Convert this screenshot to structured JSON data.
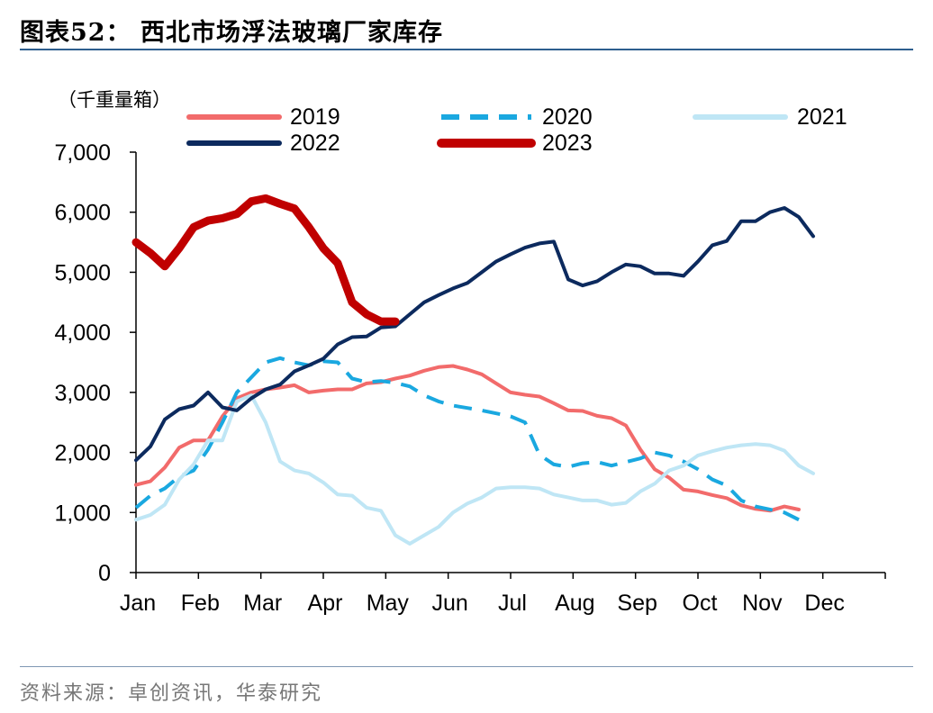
{
  "header": {
    "title": "图表52：   西北市场浮法玻璃厂家库存"
  },
  "footer": {
    "source": "资料来源：卓创资讯，华泰研究"
  },
  "chart_data": {
    "type": "line",
    "unit_label": "（千重量箱）",
    "ylim": [
      0,
      7000
    ],
    "yticks": [
      0,
      1000,
      2000,
      3000,
      4000,
      5000,
      6000,
      7000
    ],
    "ytick_labels": [
      "0",
      "1,000",
      "2,000",
      "3,000",
      "4,000",
      "5,000",
      "6,000",
      "7,000"
    ],
    "xlim": [
      0,
      52
    ],
    "xticks": [
      "Jan",
      "Feb",
      "Mar",
      "Apr",
      "May",
      "Jun",
      "Jul",
      "Aug",
      "Sep",
      "Oct",
      "Nov",
      "Dec"
    ],
    "legend_position": "top",
    "series": [
      {
        "name": "2019",
        "color": "#f26b6b",
        "dash": "",
        "width": 4,
        "points": [
          [
            0,
            1460
          ],
          [
            1,
            1520
          ],
          [
            2,
            1750
          ],
          [
            3,
            2080
          ],
          [
            4,
            2200
          ],
          [
            5,
            2200
          ],
          [
            6,
            2600
          ],
          [
            7,
            2900
          ],
          [
            8,
            3000
          ],
          [
            9,
            3050
          ],
          [
            10,
            3080
          ],
          [
            11,
            3120
          ],
          [
            12,
            3000
          ],
          [
            13,
            3030
          ],
          [
            14,
            3050
          ],
          [
            15,
            3050
          ],
          [
            16,
            3150
          ],
          [
            17,
            3170
          ],
          [
            18,
            3230
          ],
          [
            19,
            3280
          ],
          [
            20,
            3360
          ],
          [
            21,
            3420
          ],
          [
            22,
            3440
          ],
          [
            23,
            3380
          ],
          [
            24,
            3300
          ],
          [
            25,
            3150
          ],
          [
            26,
            3000
          ],
          [
            27,
            2960
          ],
          [
            28,
            2930
          ],
          [
            29,
            2820
          ],
          [
            30,
            2700
          ],
          [
            31,
            2690
          ],
          [
            32,
            2610
          ],
          [
            33,
            2570
          ],
          [
            34,
            2450
          ],
          [
            35,
            2050
          ],
          [
            36,
            1720
          ],
          [
            37,
            1580
          ],
          [
            38,
            1380
          ],
          [
            39,
            1350
          ],
          [
            40,
            1290
          ],
          [
            41,
            1240
          ],
          [
            42,
            1120
          ],
          [
            43,
            1060
          ],
          [
            44,
            1030
          ],
          [
            45,
            1100
          ],
          [
            46,
            1050
          ]
        ]
      },
      {
        "name": "2020",
        "color": "#1aa8e0",
        "dash": "20,12",
        "width": 4,
        "points": [
          [
            0,
            1080
          ],
          [
            1,
            1280
          ],
          [
            2,
            1400
          ],
          [
            3,
            1600
          ],
          [
            4,
            1700
          ],
          [
            5,
            2050
          ],
          [
            6,
            2500
          ],
          [
            7,
            3000
          ],
          [
            8,
            3250
          ],
          [
            9,
            3500
          ],
          [
            10,
            3570
          ],
          [
            11,
            3500
          ],
          [
            12,
            3450
          ],
          [
            13,
            3520
          ],
          [
            14,
            3500
          ],
          [
            15,
            3230
          ],
          [
            16,
            3170
          ],
          [
            17,
            3190
          ],
          [
            18,
            3160
          ],
          [
            19,
            3100
          ],
          [
            20,
            2950
          ],
          [
            21,
            2850
          ],
          [
            22,
            2780
          ],
          [
            23,
            2740
          ],
          [
            24,
            2700
          ],
          [
            25,
            2650
          ],
          [
            26,
            2600
          ],
          [
            27,
            2500
          ],
          [
            28,
            1960
          ],
          [
            29,
            1800
          ],
          [
            30,
            1760
          ],
          [
            31,
            1820
          ],
          [
            32,
            1840
          ],
          [
            33,
            1780
          ],
          [
            34,
            1840
          ],
          [
            35,
            1900
          ],
          [
            36,
            2000
          ],
          [
            37,
            1950
          ],
          [
            38,
            1850
          ],
          [
            39,
            1720
          ],
          [
            40,
            1550
          ],
          [
            41,
            1450
          ],
          [
            42,
            1200
          ],
          [
            43,
            1100
          ],
          [
            44,
            1050
          ],
          [
            45,
            1000
          ],
          [
            46,
            880
          ]
        ]
      },
      {
        "name": "2021",
        "color": "#bfe6f5",
        "dash": "",
        "width": 4,
        "points": [
          [
            0,
            880
          ],
          [
            1,
            960
          ],
          [
            2,
            1130
          ],
          [
            3,
            1550
          ],
          [
            4,
            1800
          ],
          [
            5,
            2200
          ],
          [
            6,
            2200
          ],
          [
            7,
            2850
          ],
          [
            8,
            2950
          ],
          [
            9,
            2500
          ],
          [
            10,
            1850
          ],
          [
            11,
            1700
          ],
          [
            12,
            1650
          ],
          [
            13,
            1500
          ],
          [
            14,
            1300
          ],
          [
            15,
            1280
          ],
          [
            16,
            1080
          ],
          [
            17,
            1030
          ],
          [
            18,
            620
          ],
          [
            19,
            480
          ],
          [
            20,
            620
          ],
          [
            21,
            760
          ],
          [
            22,
            1000
          ],
          [
            23,
            1150
          ],
          [
            24,
            1250
          ],
          [
            25,
            1400
          ],
          [
            26,
            1420
          ],
          [
            27,
            1420
          ],
          [
            28,
            1400
          ],
          [
            29,
            1300
          ],
          [
            30,
            1250
          ],
          [
            31,
            1200
          ],
          [
            32,
            1200
          ],
          [
            33,
            1130
          ],
          [
            34,
            1160
          ],
          [
            35,
            1350
          ],
          [
            36,
            1480
          ],
          [
            37,
            1700
          ],
          [
            38,
            1780
          ],
          [
            39,
            1950
          ],
          [
            40,
            2020
          ],
          [
            41,
            2080
          ],
          [
            42,
            2120
          ],
          [
            43,
            2140
          ],
          [
            44,
            2120
          ],
          [
            45,
            2030
          ],
          [
            46,
            1780
          ],
          [
            47,
            1650
          ]
        ]
      },
      {
        "name": "2022",
        "color": "#0c2a5e",
        "dash": "",
        "width": 4,
        "points": [
          [
            0,
            1870
          ],
          [
            1,
            2100
          ],
          [
            2,
            2550
          ],
          [
            3,
            2720
          ],
          [
            4,
            2780
          ],
          [
            5,
            3000
          ],
          [
            6,
            2750
          ],
          [
            7,
            2700
          ],
          [
            8,
            2900
          ],
          [
            9,
            3050
          ],
          [
            10,
            3130
          ],
          [
            11,
            3350
          ],
          [
            12,
            3450
          ],
          [
            13,
            3560
          ],
          [
            14,
            3800
          ],
          [
            15,
            3920
          ],
          [
            16,
            3930
          ],
          [
            17,
            4080
          ],
          [
            18,
            4100
          ],
          [
            19,
            4300
          ],
          [
            20,
            4500
          ],
          [
            21,
            4620
          ],
          [
            22,
            4730
          ],
          [
            23,
            4820
          ],
          [
            24,
            5000
          ],
          [
            25,
            5180
          ],
          [
            26,
            5300
          ],
          [
            27,
            5410
          ],
          [
            28,
            5480
          ],
          [
            29,
            5510
          ],
          [
            30,
            4880
          ],
          [
            31,
            4780
          ],
          [
            32,
            4850
          ],
          [
            33,
            5000
          ],
          [
            34,
            5130
          ],
          [
            35,
            5100
          ],
          [
            36,
            4980
          ],
          [
            37,
            4980
          ],
          [
            38,
            4940
          ],
          [
            39,
            5180
          ],
          [
            40,
            5450
          ],
          [
            41,
            5520
          ],
          [
            42,
            5850
          ],
          [
            43,
            5850
          ],
          [
            44,
            6000
          ],
          [
            45,
            6070
          ],
          [
            46,
            5920
          ],
          [
            47,
            5600
          ]
        ]
      },
      {
        "name": "2023",
        "color": "#c00000",
        "dash": "",
        "width": 9,
        "points": [
          [
            0,
            5500
          ],
          [
            1,
            5320
          ],
          [
            2,
            5100
          ],
          [
            3,
            5400
          ],
          [
            4,
            5750
          ],
          [
            5,
            5860
          ],
          [
            6,
            5900
          ],
          [
            7,
            5970
          ],
          [
            8,
            6180
          ],
          [
            9,
            6230
          ],
          [
            10,
            6140
          ],
          [
            11,
            6060
          ],
          [
            12,
            5750
          ],
          [
            13,
            5400
          ],
          [
            14,
            5150
          ],
          [
            15,
            4500
          ],
          [
            16,
            4300
          ],
          [
            17,
            4180
          ],
          [
            18,
            4180
          ]
        ]
      }
    ]
  }
}
